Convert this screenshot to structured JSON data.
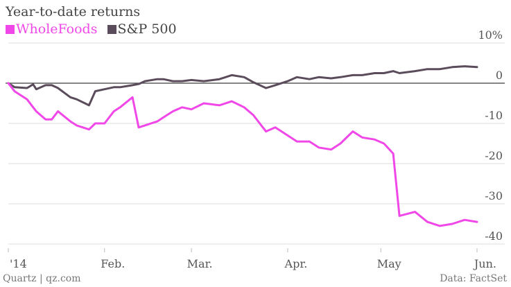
{
  "header": {
    "title": "Year-to-date returns"
  },
  "footer": {
    "credit": "Quartz | qz.com",
    "source": "Data: FactSet"
  },
  "chart_data": {
    "type": "line",
    "title": "Year-to-date returns",
    "xlabel": "",
    "ylabel": "",
    "x_ticks": [
      "'14",
      "Feb.",
      "Mar.",
      "Apr.",
      "May",
      "Jun."
    ],
    "y_ticks": [
      "10%",
      "0",
      "-10",
      "-20",
      "-30",
      "-40"
    ],
    "y_tick_values": [
      10,
      0,
      -10,
      -20,
      -30,
      -40
    ],
    "ylim": [
      -40,
      10
    ],
    "xlim": [
      "2014-01-01",
      "2014-06-01"
    ],
    "grid": true,
    "legend_position": "top-left",
    "x_labels": [
      "2014-01-01",
      "2014-01-03",
      "2014-01-07",
      "2014-01-09",
      "2014-01-10",
      "2014-01-13",
      "2014-01-15",
      "2014-01-17",
      "2014-01-21",
      "2014-01-23",
      "2014-01-27",
      "2014-01-29",
      "2014-02-01",
      "2014-02-04",
      "2014-02-06",
      "2014-02-10",
      "2014-02-12",
      "2014-02-14",
      "2014-02-18",
      "2014-02-20",
      "2014-02-23",
      "2014-02-26",
      "2014-03-01",
      "2014-03-05",
      "2014-03-10",
      "2014-03-14",
      "2014-03-18",
      "2014-03-21",
      "2014-03-25",
      "2014-03-28",
      "2014-04-01",
      "2014-04-04",
      "2014-04-08",
      "2014-04-11",
      "2014-04-15",
      "2014-04-18",
      "2014-04-22",
      "2014-04-25",
      "2014-04-29",
      "2014-05-02",
      "2014-05-05",
      "2014-05-07",
      "2014-05-12",
      "2014-05-16",
      "2014-05-20",
      "2014-05-24",
      "2014-05-28",
      "2014-06-01"
    ],
    "series": [
      {
        "name": "WholeFoods",
        "color": "#f047e8",
        "values": [
          0,
          -2,
          -4,
          -6,
          -7,
          -9,
          -9,
          -7,
          -9.5,
          -10.5,
          -11.5,
          -10,
          -10,
          -7,
          -6,
          -3.5,
          -11,
          -10.5,
          -9.5,
          -8.5,
          -7,
          -6,
          -6.5,
          -5,
          -5.5,
          -4.5,
          -6,
          -8,
          -12,
          -11,
          -13,
          -14.5,
          -14.5,
          -16,
          -16.5,
          -15,
          -12,
          -13.5,
          -14,
          -15,
          -17.5,
          -33,
          -32,
          -34.5,
          -35.5,
          -35,
          -34,
          -34.5
        ]
      },
      {
        "name": "S&P 500",
        "color": "#5b4c5c",
        "values": [
          0,
          -1,
          -1.2,
          -0.3,
          -1.5,
          -0.5,
          -0.5,
          -1.2,
          -3.5,
          -4,
          -5.5,
          -2,
          -1.5,
          -1,
          -1,
          -0.5,
          -0.2,
          0.5,
          1,
          1,
          0.5,
          0.5,
          0.8,
          0.5,
          1,
          2,
          1.5,
          0.2,
          -1.2,
          -0.5,
          0.5,
          1.5,
          1,
          1.5,
          1.2,
          1.5,
          2,
          2,
          2.5,
          2.5,
          3,
          2.5,
          3,
          3.5,
          3.5,
          4,
          4.2,
          4
        ]
      }
    ]
  }
}
